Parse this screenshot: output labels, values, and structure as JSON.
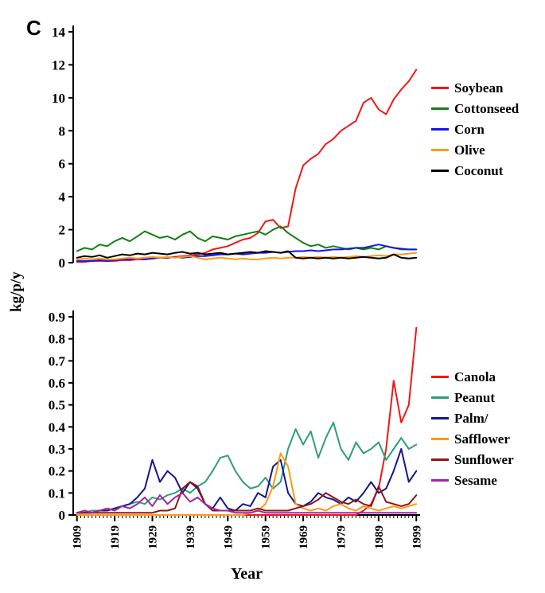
{
  "figure": {
    "panel_label": "C"
  },
  "chart_data": [
    {
      "type": "line",
      "title": "",
      "ylabel": "kg/p/y",
      "xlabel": "",
      "ylim": [
        0,
        14
      ],
      "yticks": [
        0,
        2,
        4,
        6,
        8,
        10,
        12,
        14
      ],
      "xlim": [
        1908,
        2000
      ],
      "grid": false,
      "legend_position": "right",
      "x": [
        1909,
        1911,
        1913,
        1915,
        1917,
        1919,
        1921,
        1923,
        1925,
        1927,
        1929,
        1931,
        1933,
        1935,
        1937,
        1939,
        1941,
        1943,
        1945,
        1947,
        1949,
        1951,
        1953,
        1955,
        1957,
        1959,
        1961,
        1963,
        1965,
        1967,
        1969,
        1971,
        1973,
        1975,
        1977,
        1979,
        1981,
        1983,
        1985,
        1987,
        1989,
        1991,
        1993,
        1995,
        1997,
        1999
      ],
      "series": [
        {
          "name": "Soybean",
          "color": "#f21616",
          "values": [
            0.05,
            0.05,
            0.1,
            0.1,
            0.1,
            0.1,
            0.15,
            0.15,
            0.2,
            0.2,
            0.25,
            0.3,
            0.3,
            0.35,
            0.4,
            0.45,
            0.5,
            0.6,
            0.8,
            0.9,
            1.0,
            1.2,
            1.4,
            1.5,
            1.8,
            2.5,
            2.6,
            2.1,
            2.2,
            4.5,
            5.9,
            6.3,
            6.6,
            7.2,
            7.5,
            8.0,
            8.3,
            8.6,
            9.7,
            10.0,
            9.3,
            9.0,
            9.9,
            10.5,
            11.0,
            11.7
          ]
        },
        {
          "name": "Cottonseed",
          "color": "#128012",
          "values": [
            0.7,
            0.9,
            0.8,
            1.1,
            1.0,
            1.3,
            1.5,
            1.3,
            1.6,
            1.9,
            1.7,
            1.5,
            1.6,
            1.4,
            1.7,
            1.9,
            1.5,
            1.3,
            1.6,
            1.5,
            1.4,
            1.6,
            1.7,
            1.8,
            1.9,
            1.7,
            2.0,
            2.2,
            1.8,
            1.5,
            1.2,
            1.0,
            1.1,
            0.9,
            1.0,
            0.9,
            0.8,
            0.9,
            0.8,
            0.9,
            0.8,
            1.0,
            0.9,
            0.8,
            0.8,
            0.8
          ]
        },
        {
          "name": "Corn",
          "color": "#1414f0",
          "values": [
            0.1,
            0.1,
            0.1,
            0.15,
            0.1,
            0.15,
            0.2,
            0.2,
            0.25,
            0.2,
            0.25,
            0.3,
            0.3,
            0.35,
            0.3,
            0.35,
            0.4,
            0.4,
            0.45,
            0.5,
            0.5,
            0.55,
            0.5,
            0.55,
            0.6,
            0.6,
            0.65,
            0.6,
            0.65,
            0.7,
            0.7,
            0.75,
            0.7,
            0.75,
            0.8,
            0.8,
            0.85,
            0.9,
            0.9,
            1.0,
            1.1,
            1.0,
            0.9,
            0.85,
            0.8,
            0.8
          ]
        },
        {
          "name": "Olive",
          "color": "#ff9913",
          "values": [
            0.2,
            0.25,
            0.2,
            0.25,
            0.2,
            0.2,
            0.25,
            0.3,
            0.25,
            0.3,
            0.35,
            0.3,
            0.35,
            0.3,
            0.35,
            0.4,
            0.3,
            0.2,
            0.25,
            0.3,
            0.25,
            0.2,
            0.25,
            0.2,
            0.2,
            0.25,
            0.3,
            0.25,
            0.3,
            0.3,
            0.35,
            0.3,
            0.35,
            0.3,
            0.35,
            0.3,
            0.35,
            0.4,
            0.35,
            0.4,
            0.45,
            0.4,
            0.5,
            0.5,
            0.55,
            0.6
          ]
        },
        {
          "name": "Coconut",
          "color": "#000000",
          "values": [
            0.3,
            0.4,
            0.35,
            0.45,
            0.3,
            0.4,
            0.5,
            0.45,
            0.55,
            0.5,
            0.6,
            0.55,
            0.5,
            0.6,
            0.65,
            0.55,
            0.6,
            0.5,
            0.55,
            0.6,
            0.5,
            0.55,
            0.6,
            0.65,
            0.6,
            0.7,
            0.65,
            0.6,
            0.7,
            0.3,
            0.25,
            0.3,
            0.25,
            0.3,
            0.25,
            0.3,
            0.25,
            0.3,
            0.35,
            0.3,
            0.25,
            0.3,
            0.5,
            0.3,
            0.25,
            0.3
          ]
        }
      ]
    },
    {
      "type": "line",
      "title": "",
      "ylabel": "kg/p/y",
      "xlabel": "Year",
      "ylim": [
        0,
        0.9
      ],
      "yticks": [
        0,
        0.1,
        0.2,
        0.3,
        0.4,
        0.5,
        0.6,
        0.7,
        0.8,
        0.9
      ],
      "xlim": [
        1908,
        2000
      ],
      "xticks": [
        1909,
        1919,
        1929,
        1939,
        1949,
        1959,
        1969,
        1979,
        1989,
        1999
      ],
      "grid": false,
      "legend_position": "right",
      "x": [
        1909,
        1911,
        1913,
        1915,
        1917,
        1919,
        1921,
        1923,
        1925,
        1927,
        1929,
        1931,
        1933,
        1935,
        1937,
        1939,
        1941,
        1943,
        1945,
        1947,
        1949,
        1951,
        1953,
        1955,
        1957,
        1959,
        1961,
        1963,
        1965,
        1967,
        1969,
        1971,
        1973,
        1975,
        1977,
        1979,
        1981,
        1983,
        1985,
        1987,
        1989,
        1991,
        1993,
        1995,
        1997,
        1999
      ],
      "series": [
        {
          "name": "Canola",
          "color": "#f21616",
          "values": [
            0,
            0,
            0,
            0,
            0,
            0,
            0,
            0,
            0,
            0,
            0,
            0,
            0,
            0,
            0,
            0,
            0,
            0,
            0,
            0,
            0,
            0,
            0,
            0,
            0,
            0,
            0,
            0,
            0,
            0,
            0,
            0,
            0,
            0,
            0,
            0,
            0,
            0,
            0.02,
            0.05,
            0.12,
            0.3,
            0.61,
            0.42,
            0.5,
            0.85
          ]
        },
        {
          "name": "Peanut",
          "color": "#2f9e77",
          "values": [
            0.01,
            0.01,
            0.02,
            0.02,
            0.02,
            0.03,
            0.04,
            0.05,
            0.06,
            0.05,
            0.08,
            0.07,
            0.09,
            0.1,
            0.12,
            0.1,
            0.13,
            0.15,
            0.2,
            0.26,
            0.27,
            0.2,
            0.15,
            0.12,
            0.13,
            0.17,
            0.12,
            0.15,
            0.3,
            0.39,
            0.32,
            0.38,
            0.26,
            0.35,
            0.42,
            0.3,
            0.25,
            0.33,
            0.28,
            0.3,
            0.33,
            0.25,
            0.3,
            0.35,
            0.3,
            0.32
          ]
        },
        {
          "name": "Palm/",
          "color": "#16168c",
          "values": [
            0.01,
            0.01,
            0.01,
            0.02,
            0.02,
            0.03,
            0.04,
            0.05,
            0.08,
            0.12,
            0.25,
            0.15,
            0.2,
            0.17,
            0.1,
            0.15,
            0.12,
            0.05,
            0.03,
            0.08,
            0.03,
            0.02,
            0.05,
            0.04,
            0.1,
            0.08,
            0.22,
            0.25,
            0.1,
            0.05,
            0.04,
            0.06,
            0.1,
            0.08,
            0.07,
            0.05,
            0.08,
            0.06,
            0.1,
            0.15,
            0.1,
            0.12,
            0.2,
            0.3,
            0.15,
            0.2
          ]
        },
        {
          "name": "Safflower",
          "color": "#ff9913",
          "values": [
            0,
            0,
            0,
            0,
            0,
            0,
            0,
            0,
            0,
            0,
            0,
            0,
            0,
            0,
            0,
            0,
            0,
            0,
            0,
            0,
            0,
            0,
            0,
            0.01,
            0.02,
            0.05,
            0.13,
            0.28,
            0.22,
            0.05,
            0.03,
            0.02,
            0.03,
            0.02,
            0.04,
            0.05,
            0.03,
            0.02,
            0.04,
            0.03,
            0.02,
            0.03,
            0.04,
            0.03,
            0.04,
            0.05
          ]
        },
        {
          "name": "Sunflower",
          "color": "#8c1616",
          "values": [
            0.01,
            0.01,
            0.01,
            0.01,
            0.01,
            0.01,
            0.01,
            0.01,
            0.01,
            0.01,
            0.01,
            0.02,
            0.02,
            0.03,
            0.12,
            0.15,
            0.13,
            0.05,
            0.02,
            0.02,
            0.02,
            0.02,
            0.02,
            0.02,
            0.03,
            0.02,
            0.02,
            0.02,
            0.02,
            0.03,
            0.04,
            0.05,
            0.07,
            0.1,
            0.08,
            0.06,
            0.05,
            0.07,
            0.05,
            0.04,
            0.13,
            0.06,
            0.05,
            0.04,
            0.05,
            0.09
          ]
        },
        {
          "name": "Sesame",
          "color": "#a026a0",
          "values": [
            0.01,
            0.02,
            0.01,
            0.02,
            0.03,
            0.02,
            0.04,
            0.03,
            0.05,
            0.08,
            0.04,
            0.09,
            0.05,
            0.08,
            0.1,
            0.06,
            0.08,
            0.05,
            0.03,
            0.02,
            0.02,
            0.01,
            0.01,
            0.01,
            0.02,
            0.01,
            0.01,
            0.01,
            0.01,
            0.01,
            0.01,
            0.01,
            0.01,
            0.01,
            0.01,
            0.01,
            0.01,
            0.01,
            0.01,
            0.01,
            0.01,
            0.01,
            0.01,
            0.01,
            0.01,
            0.01
          ]
        }
      ]
    }
  ]
}
